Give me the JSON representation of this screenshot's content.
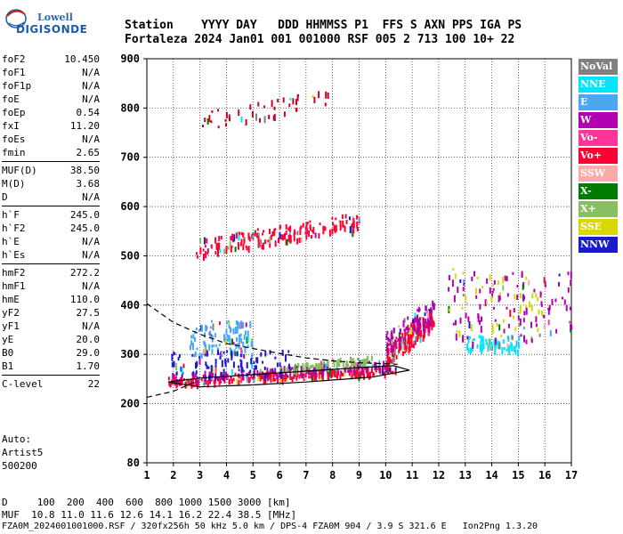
{
  "logo": {
    "line1": "Lowell",
    "line2": "DIGISONDE"
  },
  "header": {
    "line1": "Station    YYYY DAY   DDD HHMMSS P1  FFS S AXN PPS IGA PS",
    "line2": "Fortaleza 2024 Jan01 001 001000 RSF 005 2 713 100 10+ 22"
  },
  "params": [
    {
      "group": [
        {
          "name": "foF2",
          "value": "10.450"
        },
        {
          "name": "foF1",
          "value": "N/A"
        },
        {
          "name": "foF1p",
          "value": "N/A"
        },
        {
          "name": "foE",
          "value": "N/A"
        },
        {
          "name": "foEp",
          "value": "0.54"
        },
        {
          "name": "fxI",
          "value": "11.20"
        },
        {
          "name": "foEs",
          "value": "N/A"
        },
        {
          "name": "fmin",
          "value": "2.65"
        }
      ]
    },
    {
      "group": [
        {
          "name": "MUF(D)",
          "value": "38.50"
        },
        {
          "name": "M(D)",
          "value": "3.68"
        },
        {
          "name": "D",
          "value": "N/A"
        }
      ]
    },
    {
      "group": [
        {
          "name": "h`F",
          "value": "245.0"
        },
        {
          "name": "h`F2",
          "value": "245.0"
        },
        {
          "name": "h`E",
          "value": "N/A"
        },
        {
          "name": "h`Es",
          "value": "N/A"
        }
      ]
    },
    {
      "group": [
        {
          "name": "hmF2",
          "value": "272.2"
        },
        {
          "name": "hmF1",
          "value": "N/A"
        },
        {
          "name": "hmE",
          "value": "110.0"
        },
        {
          "name": "yF2",
          "value": "27.5"
        },
        {
          "name": "yF1",
          "value": "N/A"
        },
        {
          "name": "yE",
          "value": "20.0"
        },
        {
          "name": "B0",
          "value": "29.0"
        },
        {
          "name": "B1",
          "value": "1.70"
        }
      ]
    },
    {
      "group": [
        {
          "name": "C-level",
          "value": "22"
        }
      ]
    }
  ],
  "auto": {
    "line1": "Auto:",
    "line2": "Artist5",
    "line3": "500200"
  },
  "legend": [
    {
      "label": "NoVal",
      "color": "#808080"
    },
    {
      "label": "NNE",
      "color": "#00e5ff"
    },
    {
      "label": "E",
      "color": "#4aa8f0"
    },
    {
      "label": "W",
      "color": "#b000b0"
    },
    {
      "label": "Vo-",
      "color": "#ff3399"
    },
    {
      "label": "Vo+",
      "color": "#ff0033"
    },
    {
      "label": "SSW",
      "color": "#ffaaaa"
    },
    {
      "label": "X-",
      "color": "#007a00"
    },
    {
      "label": "X+",
      "color": "#88c060"
    },
    {
      "label": "SSE",
      "color": "#d8d800"
    },
    {
      "label": "NNW",
      "color": "#1a1ad0"
    }
  ],
  "footer": {
    "line1": "D     100  200  400  600  800 1000 1500 3000 [km]",
    "line2": "MUF  10.8 11.0 11.6 12.6 14.1 16.2 22.4 38.5 [MHz]",
    "line3": "FZA0M_2024001001000.RSF / 320fx256h 50 kHz 5.0 km / DPS-4 FZA0M 904 / 3.9 S 321.6 E   Ion2Png 1.3.20"
  },
  "chart_data": {
    "type": "scatter",
    "xlim": [
      1,
      17
    ],
    "ylim": [
      80,
      900
    ],
    "xticks": [
      "1",
      "2",
      "3",
      "4",
      "5",
      "6",
      "7",
      "8",
      "9",
      "10",
      "11",
      "12",
      "13",
      "14",
      "15",
      "16",
      "17"
    ],
    "yticks": [
      "80",
      "200",
      "300",
      "400",
      "500",
      "600",
      "700",
      "800",
      "900"
    ],
    "grid": true,
    "clusters": [
      {
        "name": "o-trace",
        "color": "#ff0033",
        "x": [
          1.8,
          10.4
        ],
        "y": [
          240,
          280
        ],
        "n": 260
      },
      {
        "name": "o-trace-W",
        "color": "#b000b0",
        "x": [
          1.9,
          10.2
        ],
        "y": [
          245,
          290
        ],
        "n": 140
      },
      {
        "name": "x-trace",
        "color": "#88c060",
        "x": [
          6.0,
          9.5
        ],
        "y": [
          268,
          300
        ],
        "n": 70
      },
      {
        "name": "spread-E",
        "color": "#4aa8f0",
        "x": [
          2.6,
          5.0
        ],
        "y": [
          300,
          370
        ],
        "n": 110
      },
      {
        "name": "spread-NNW",
        "color": "#1a1ad0",
        "x": [
          1.9,
          6.5
        ],
        "y": [
          255,
          310
        ],
        "n": 90
      },
      {
        "name": "high-freq-Vo",
        "color": "#ff0033",
        "x": [
          10.0,
          11.8
        ],
        "y": [
          280,
          400
        ],
        "n": 160
      },
      {
        "name": "high-freq-W",
        "color": "#b000b0",
        "x": [
          10.0,
          11.8
        ],
        "y": [
          300,
          420
        ],
        "n": 90
      },
      {
        "name": "spread-F-NNE",
        "color": "#00e5ff",
        "x": [
          13.0,
          15.0
        ],
        "y": [
          310,
          340
        ],
        "n": 70
      },
      {
        "name": "spread-F-W",
        "color": "#b000b0",
        "x": [
          12.3,
          17.0
        ],
        "y": [
          330,
          470
        ],
        "n": 120
      },
      {
        "name": "spread-F-SSE",
        "color": "#d8d800",
        "x": [
          12.3,
          16.0
        ],
        "y": [
          340,
          480
        ],
        "n": 40
      }
    ],
    "second_hop": {
      "color": "#ff0033",
      "x": [
        2.8,
        9.0
      ],
      "y": [
        500,
        590
      ],
      "n": 180
    },
    "third_hop": {
      "color": "#cc0022",
      "x": [
        3.0,
        8.0
      ],
      "y": [
        755,
        845
      ],
      "n": 45
    },
    "profile_dashed": [
      [
        1,
        403
      ],
      [
        2,
        365
      ],
      [
        3,
        341
      ],
      [
        4,
        322
      ],
      [
        5,
        312
      ],
      [
        6,
        302
      ],
      [
        7,
        293
      ],
      [
        8,
        287
      ],
      [
        9,
        283
      ],
      [
        10,
        281
      ],
      [
        10.45,
        280
      ]
    ],
    "profile_dashed_lower": [
      [
        1,
        213
      ],
      [
        2,
        225
      ],
      [
        2.8,
        244
      ]
    ],
    "profile_solid": [
      [
        1.8,
        244
      ],
      [
        3,
        252
      ],
      [
        5,
        259
      ],
      [
        7,
        266
      ],
      [
        9,
        273
      ],
      [
        10.3,
        277
      ],
      [
        10.9,
        268
      ],
      [
        9.5,
        254
      ],
      [
        7,
        244
      ],
      [
        5,
        238
      ],
      [
        3,
        234
      ],
      [
        1.8,
        244
      ]
    ]
  }
}
